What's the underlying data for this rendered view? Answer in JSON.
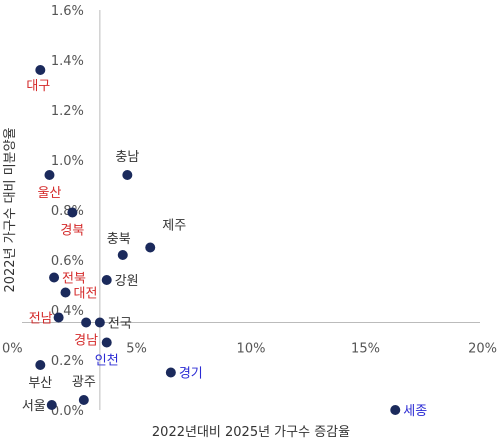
{
  "chart_data": {
    "type": "scatter",
    "xlabel": "2022년대비 2025년 가구수 증감율",
    "ylabel": "2022년 가구수 대비 미분양율",
    "xlim": [
      0,
      20
    ],
    "ylim": [
      0,
      1.6
    ],
    "x_ticks": [
      {
        "value": 0,
        "label": "0%"
      },
      {
        "value": 5,
        "label": "5%"
      },
      {
        "value": 10,
        "label": "10%"
      },
      {
        "value": 15,
        "label": "15%"
      },
      {
        "value": 20,
        "label": "20%"
      }
    ],
    "y_ticks": [
      {
        "value": 0,
        "label": "0.0%"
      },
      {
        "value": 0.2,
        "label": "0.2%"
      },
      {
        "value": 0.4,
        "label": "0.4%"
      },
      {
        "value": 0.6,
        "label": "0.6%"
      },
      {
        "value": 0.8,
        "label": "0.8%"
      },
      {
        "value": 1.0,
        "label": "1.0%"
      },
      {
        "value": 1.2,
        "label": "1.2%"
      },
      {
        "value": 1.4,
        "label": "1.4%"
      },
      {
        "value": 1.6,
        "label": "1.6%"
      }
    ],
    "reference_lines": {
      "x": 3.4,
      "y": 0.35
    },
    "colors": {
      "point": "#1b2a5c",
      "default_label": "#333333",
      "red_label": "#d42a2a",
      "blue_label": "#2a2ad4",
      "axis_line": "#bbbbbb"
    },
    "points": [
      {
        "name": "대구",
        "x": 0.8,
        "y": 1.36,
        "label_color": "red",
        "label_pos": "below-left"
      },
      {
        "name": "울산",
        "x": 1.2,
        "y": 0.94,
        "label_color": "red",
        "label_pos": "below"
      },
      {
        "name": "경북",
        "x": 2.2,
        "y": 0.79,
        "label_color": "red",
        "label_pos": "below"
      },
      {
        "name": "충남",
        "x": 4.6,
        "y": 0.94,
        "label_color": "default",
        "label_pos": "above"
      },
      {
        "name": "제주",
        "x": 5.6,
        "y": 0.65,
        "label_color": "default",
        "label_pos": "above-right"
      },
      {
        "name": "충북",
        "x": 4.4,
        "y": 0.62,
        "label_color": "default",
        "label_pos": "above-left"
      },
      {
        "name": "강원",
        "x": 3.7,
        "y": 0.52,
        "label_color": "default",
        "label_pos": "right"
      },
      {
        "name": "전북",
        "x": 1.4,
        "y": 0.53,
        "label_color": "red",
        "label_pos": "right"
      },
      {
        "name": "대전",
        "x": 1.9,
        "y": 0.47,
        "label_color": "red",
        "label_pos": "right"
      },
      {
        "name": "전남",
        "x": 1.6,
        "y": 0.37,
        "label_color": "red",
        "label_pos": "left"
      },
      {
        "name": "전국",
        "x": 3.4,
        "y": 0.35,
        "label_color": "default",
        "label_pos": "right"
      },
      {
        "name": "경남",
        "x": 2.8,
        "y": 0.35,
        "label_color": "red",
        "label_pos": "below"
      },
      {
        "name": "인천",
        "x": 3.7,
        "y": 0.27,
        "label_color": "blue",
        "label_pos": "below"
      },
      {
        "name": "부산",
        "x": 0.8,
        "y": 0.18,
        "label_color": "default",
        "label_pos": "below"
      },
      {
        "name": "경기",
        "x": 6.5,
        "y": 0.15,
        "label_color": "blue",
        "label_pos": "right"
      },
      {
        "name": "광주",
        "x": 2.7,
        "y": 0.04,
        "label_color": "default",
        "label_pos": "above"
      },
      {
        "name": "서울",
        "x": 1.3,
        "y": 0.02,
        "label_color": "default",
        "label_pos": "left"
      },
      {
        "name": "세종",
        "x": 16.3,
        "y": 0.0,
        "label_color": "blue",
        "label_pos": "right"
      }
    ]
  }
}
